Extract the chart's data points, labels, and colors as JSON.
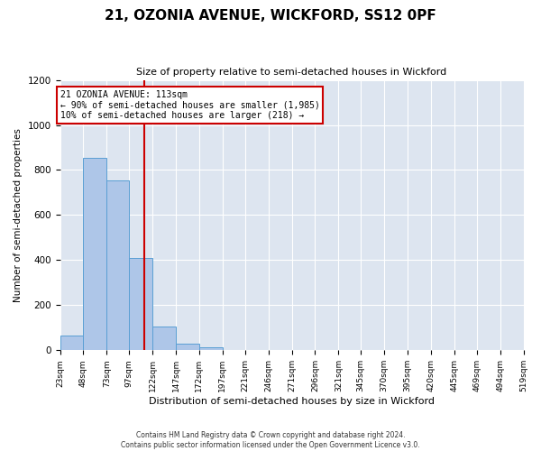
{
  "title": "21, OZONIA AVENUE, WICKFORD, SS12 0PF",
  "subtitle": "Size of property relative to semi-detached houses in Wickford",
  "xlabel": "Distribution of semi-detached houses by size in Wickford",
  "ylabel": "Number of semi-detached properties",
  "footer_line1": "Contains HM Land Registry data © Crown copyright and database right 2024.",
  "footer_line2": "Contains public sector information licensed under the Open Government Licence v3.0.",
  "property_size": 113,
  "annotation_title": "21 OZONIA AVENUE: 113sqm",
  "annotation_line2": "← 90% of semi-detached houses are smaller (1,985)",
  "annotation_line3": "10% of semi-detached houses are larger (218) →",
  "bin_edges": [
    23,
    48,
    73,
    97,
    122,
    147,
    172,
    197,
    221,
    246,
    271,
    296,
    321,
    345,
    370,
    395,
    420,
    445,
    469,
    494,
    519
  ],
  "bin_counts": [
    65,
    855,
    755,
    410,
    105,
    30,
    12,
    0,
    0,
    0,
    0,
    0,
    0,
    0,
    0,
    0,
    0,
    0,
    0,
    0
  ],
  "bar_color": "#aec6e8",
  "bar_edge_color": "#5a9fd4",
  "line_color": "#cc0000",
  "annotation_box_edge": "#cc0000",
  "background_color": "#dde5f0",
  "ylim": [
    0,
    1200
  ],
  "yticks": [
    0,
    200,
    400,
    600,
    800,
    1000,
    1200
  ],
  "tick_labels": [
    "23sqm",
    "48sqm",
    "73sqm",
    "97sqm",
    "122sqm",
    "147sqm",
    "172sqm",
    "197sqm",
    "221sqm",
    "246sqm",
    "271sqm",
    "296sqm",
    "321sqm",
    "345sqm",
    "370sqm",
    "395sqm",
    "420sqm",
    "445sqm",
    "469sqm",
    "494sqm",
    "519sqm"
  ]
}
